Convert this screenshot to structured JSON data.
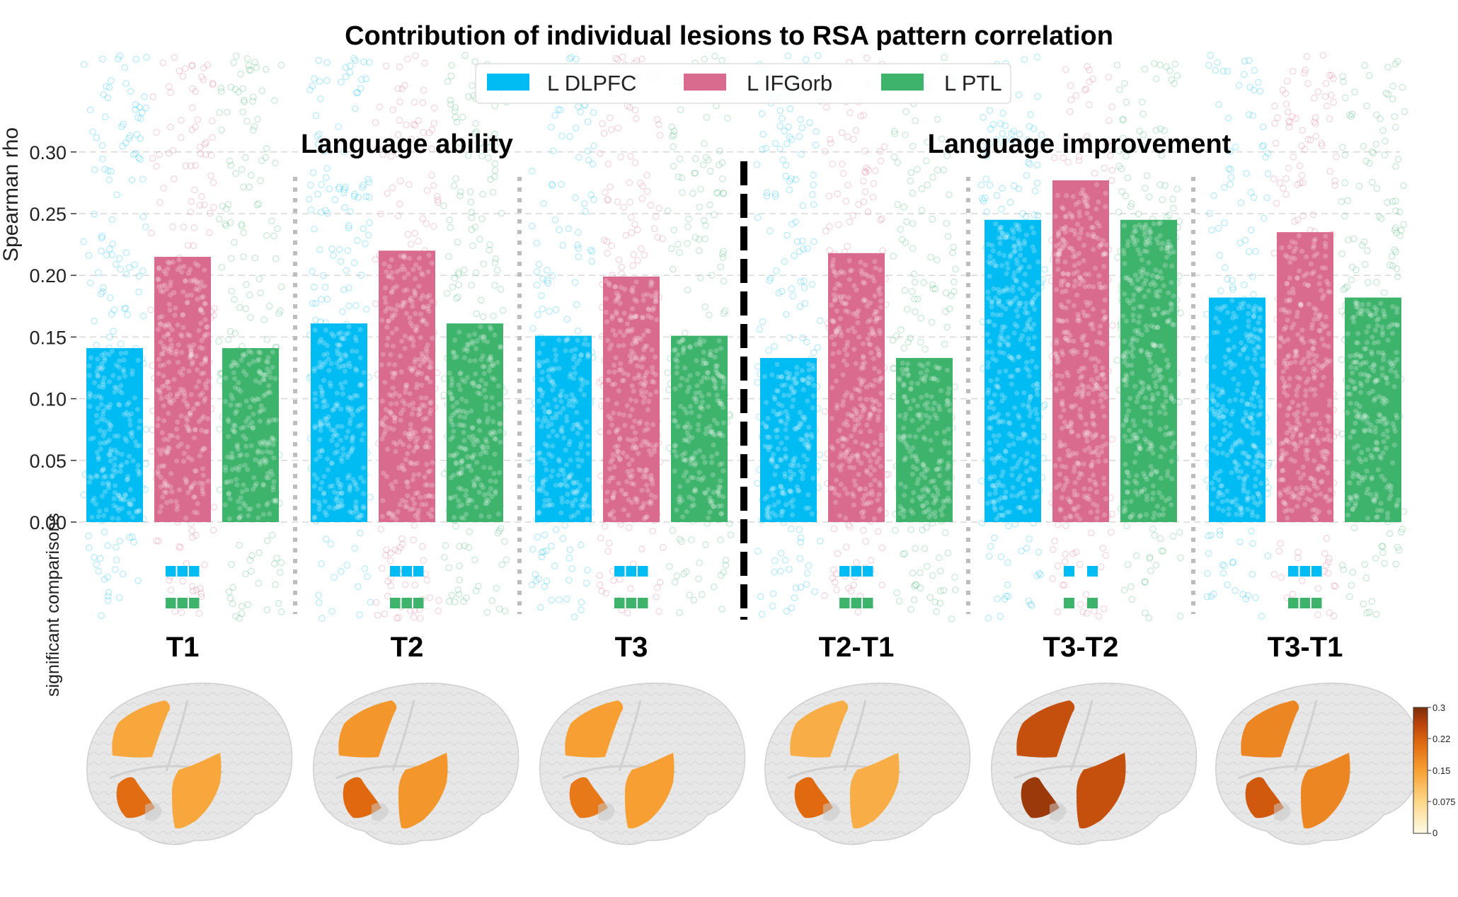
{
  "chart_data": {
    "type": "bar",
    "title": "Contribution of individual lesions to RSA pattern correlation",
    "ylabel": "Spearman rho",
    "lower_panel_label": "significant comparisons",
    "ylim": [
      0,
      0.38
    ],
    "yticks": [
      "0.00",
      "0.05",
      "0.10",
      "0.15",
      "0.20",
      "0.25",
      "0.30"
    ],
    "grid": true,
    "legend_position": "top-center",
    "section_labels": [
      "Language ability",
      "Language improvement"
    ],
    "categories": [
      "T1",
      "T2",
      "T3",
      "T2-T1",
      "T3-T2",
      "T3-T1"
    ],
    "series": [
      {
        "name": "L DLPFC",
        "color": "#00bcf2",
        "values": [
          0.141,
          0.161,
          0.151,
          0.133,
          0.245,
          0.182
        ]
      },
      {
        "name": "L IFGorb",
        "color": "#d96b8e",
        "values": [
          0.215,
          0.22,
          0.199,
          0.218,
          0.277,
          0.235
        ]
      },
      {
        "name": "L PTL",
        "color": "#3db36b",
        "values": [
          0.141,
          0.161,
          0.151,
          0.133,
          0.245,
          0.182
        ]
      }
    ],
    "significance": [
      {
        "category": "T1",
        "rows": [
          "solid",
          "solid"
        ]
      },
      {
        "category": "T2",
        "rows": [
          "solid",
          "solid"
        ]
      },
      {
        "category": "T3",
        "rows": [
          "solid",
          "solid"
        ]
      },
      {
        "category": "T2-T1",
        "rows": [
          "solid",
          "solid"
        ]
      },
      {
        "category": "T3-T2",
        "rows": [
          "split",
          "split"
        ]
      },
      {
        "category": "T3-T1",
        "rows": [
          "solid",
          "solid"
        ]
      }
    ],
    "colorbar": {
      "ticks": [
        "0.3",
        "0.22",
        "0.15",
        "0.075",
        "0"
      ],
      "colors": [
        "#7a2e0a",
        "#b5410c",
        "#e0680f",
        "#f7a032",
        "#fdd88a",
        "#fffbe6"
      ]
    }
  }
}
